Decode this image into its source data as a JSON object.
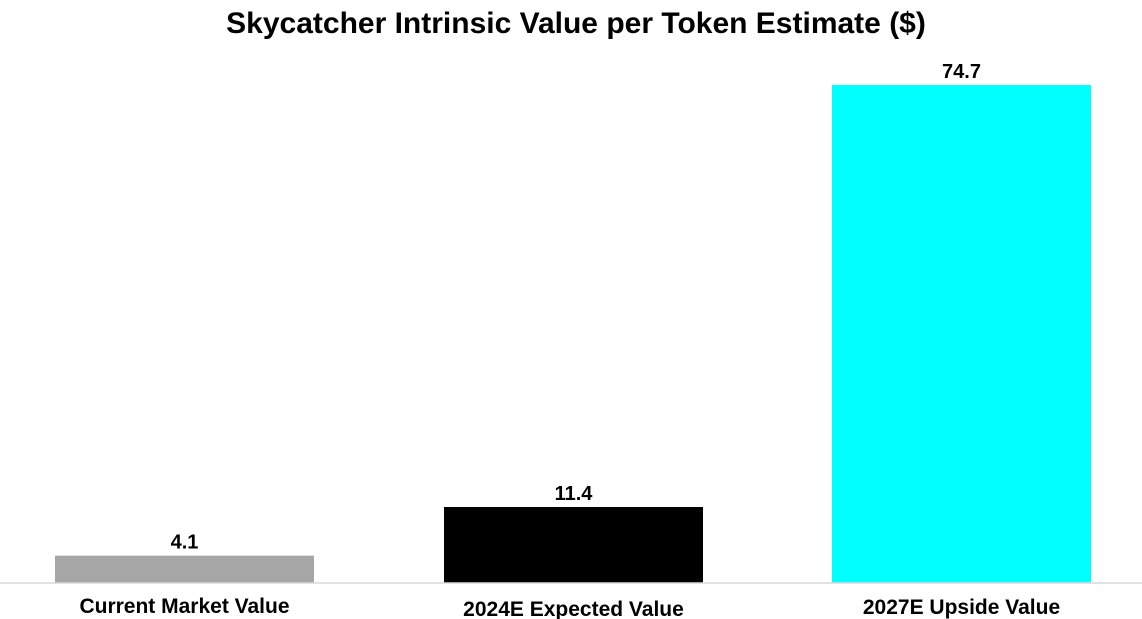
{
  "chart_data": {
    "type": "bar",
    "title": "Skycatcher Intrinsic Value per Token Estimate ($)",
    "xlabel": "",
    "ylabel": "",
    "categories": [
      "Current Market Value",
      "2024E Expected Value",
      "2027E Upside Value"
    ],
    "values": [
      4.1,
      11.4,
      74.7
    ],
    "value_labels": [
      "4.1",
      "11.4",
      "74.7"
    ],
    "colors": [
      "#a6a6a6",
      "#000000",
      "#00ffff"
    ],
    "ylim": [
      0,
      74.7
    ],
    "grid": false,
    "legend": "none"
  }
}
